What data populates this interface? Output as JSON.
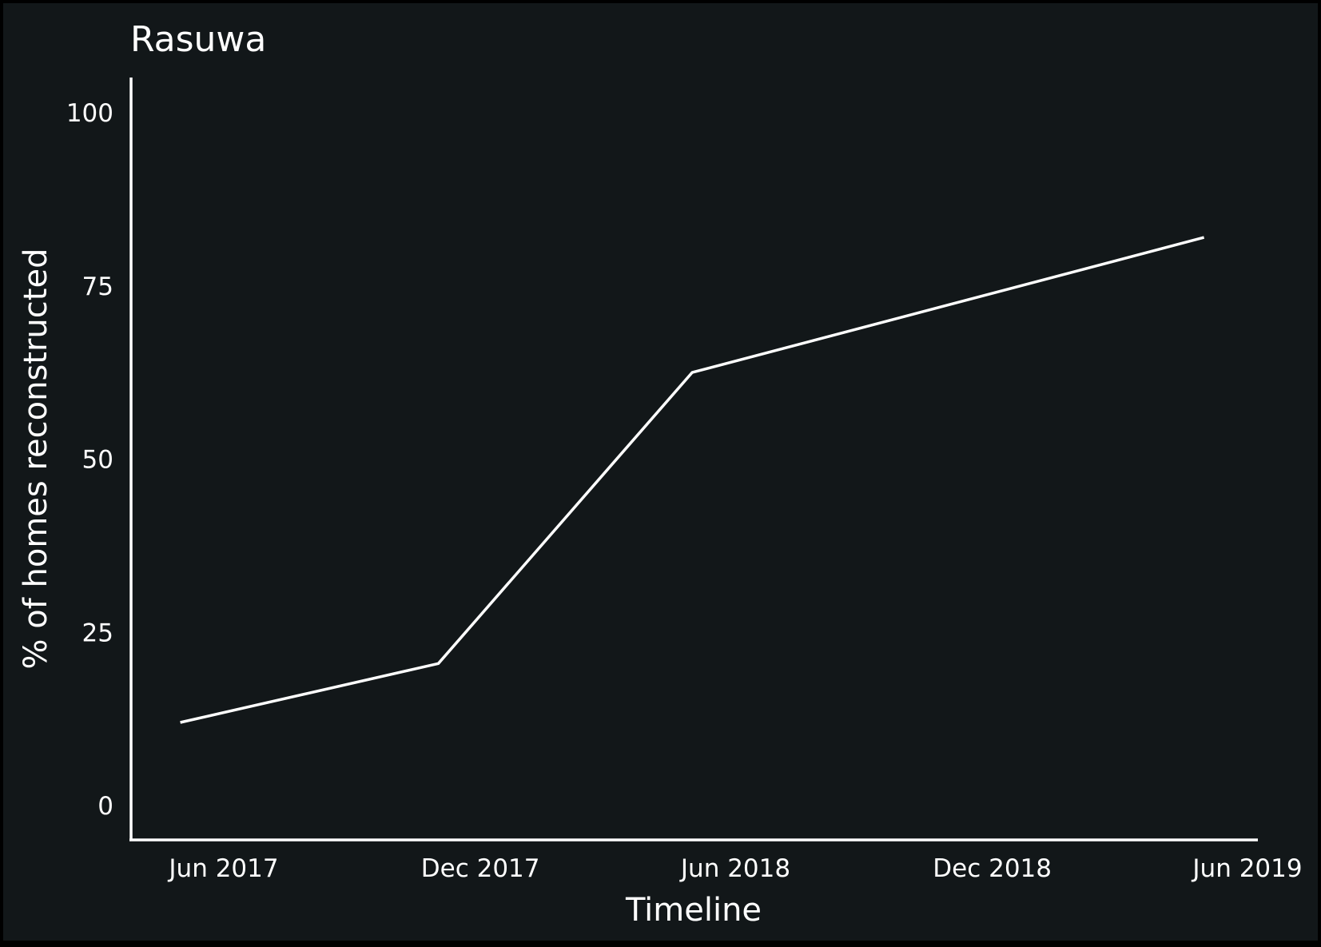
{
  "chart_data": {
    "type": "line",
    "title": "Rasuwa",
    "xlabel": "Timeline",
    "ylabel": "% of homes reconstructed",
    "x_ticks": [
      "Jun 2017",
      "Dec 2017",
      "Jun 2018",
      "Dec 2018",
      "Jun 2019"
    ],
    "y_ticks": [
      "0",
      "25",
      "50",
      "75",
      "100"
    ],
    "ylim": [
      0,
      100
    ],
    "grid": false,
    "legend": "none",
    "colors": {
      "background": "#121719",
      "line": "#ffffff",
      "text": "#ffffff"
    },
    "series": [
      {
        "x": [
          "2017-05-01",
          "2017-11-01",
          "2018-05-01",
          "2019-05-01"
        ],
        "y": [
          12,
          20.5,
          62.5,
          82
        ]
      }
    ]
  }
}
